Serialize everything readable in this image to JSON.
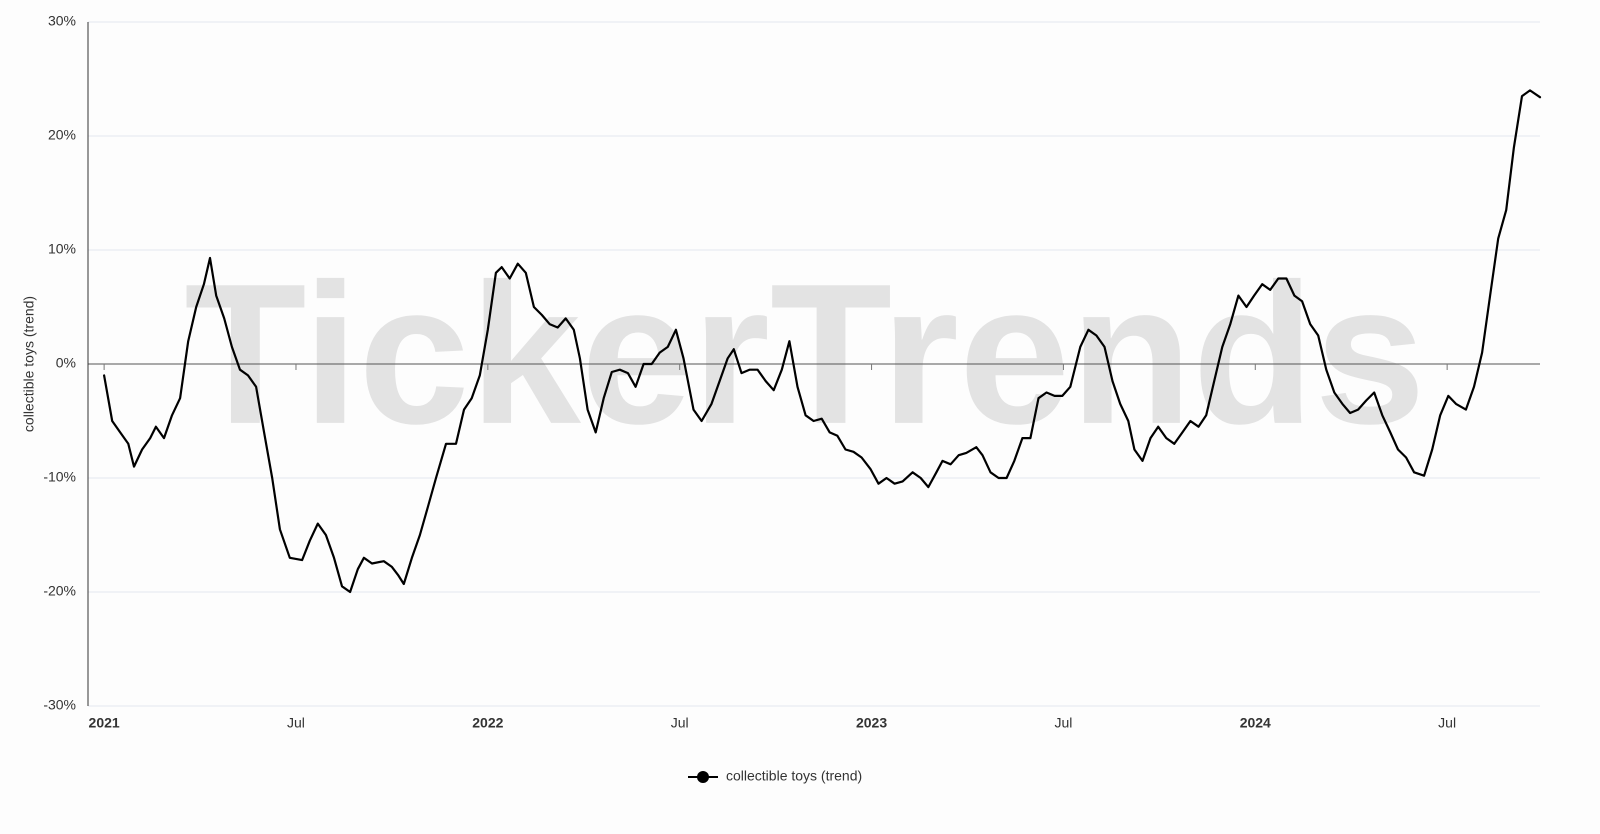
{
  "chart_data": {
    "type": "line",
    "watermark": "TickerTrends",
    "ylabel": "collectible toys  (trend)",
    "xlim": [
      2020.958,
      2024.742
    ],
    "xticks": [
      {
        "value": 2021,
        "label": "2021"
      },
      {
        "value": 2021.5,
        "label": "Jul"
      },
      {
        "value": 2022,
        "label": "2022"
      },
      {
        "value": 2022.5,
        "label": "Jul"
      },
      {
        "value": 2023,
        "label": "2023"
      },
      {
        "value": 2023.5,
        "label": "Jul"
      },
      {
        "value": 2024,
        "label": "2024"
      },
      {
        "value": 2024.5,
        "label": "Jul"
      }
    ],
    "ylim": [
      -30,
      30
    ],
    "yticks": [
      {
        "value": -30,
        "label": "-30%"
      },
      {
        "value": -20,
        "label": "-20%"
      },
      {
        "value": -10,
        "label": "-10%"
      },
      {
        "value": 0,
        "label": "0%"
      },
      {
        "value": 10,
        "label": "10%"
      },
      {
        "value": 20,
        "label": "20%"
      },
      {
        "value": 30,
        "label": "30%"
      }
    ],
    "grid": true,
    "legend": "bottom",
    "x": [
      2021.0,
      2021.021,
      2021.042,
      2021.063,
      2021.078,
      2021.099,
      2021.12,
      2021.135,
      2021.156,
      2021.177,
      2021.198,
      2021.219,
      2021.24,
      2021.26,
      2021.276,
      2021.292,
      2021.313,
      2021.333,
      2021.354,
      2021.375,
      2021.396,
      2021.417,
      2021.438,
      2021.458,
      2021.484,
      2021.516,
      2021.536,
      2021.557,
      2021.578,
      2021.599,
      2021.62,
      2021.641,
      2021.661,
      2021.677,
      2021.698,
      2021.729,
      2021.75,
      2021.766,
      2021.781,
      2021.802,
      2021.823,
      2021.844,
      2021.865,
      2021.891,
      2021.917,
      2021.938,
      2021.958,
      2021.979,
      2022.0,
      2022.021,
      2022.036,
      2022.057,
      2022.078,
      2022.099,
      2022.12,
      2022.141,
      2022.161,
      2022.182,
      2022.203,
      2022.224,
      2022.24,
      2022.26,
      2022.281,
      2022.302,
      2022.323,
      2022.344,
      2022.365,
      2022.385,
      2022.406,
      2022.427,
      2022.448,
      2022.469,
      2022.49,
      2022.51,
      2022.536,
      2022.557,
      2022.583,
      2022.604,
      2022.625,
      2022.641,
      2022.661,
      2022.682,
      2022.703,
      2022.724,
      2022.745,
      2022.766,
      2022.786,
      2022.807,
      2022.828,
      2022.849,
      2022.87,
      2022.891,
      2022.911,
      2022.932,
      2022.953,
      2022.974,
      2022.997,
      2023.018,
      2023.039,
      2023.06,
      2023.081,
      2023.107,
      2023.128,
      2023.148,
      2023.169,
      2023.185,
      2023.206,
      2023.227,
      2023.247,
      2023.273,
      2023.289,
      2023.31,
      2023.331,
      2023.352,
      2023.372,
      2023.393,
      2023.414,
      2023.435,
      2023.456,
      2023.477,
      2023.497,
      2023.518,
      2023.544,
      2023.565,
      2023.586,
      2023.607,
      2023.628,
      2023.648,
      2023.669,
      2023.685,
      2023.706,
      2023.727,
      2023.747,
      2023.768,
      2023.789,
      2023.81,
      2023.831,
      2023.852,
      2023.872,
      2023.893,
      2023.914,
      2023.935,
      2023.956,
      2023.977,
      2023.997,
      2024.018,
      2024.039,
      2024.06,
      2024.081,
      2024.102,
      2024.122,
      2024.143,
      2024.164,
      2024.185,
      2024.206,
      2024.227,
      2024.247,
      2024.268,
      2024.289,
      2024.31,
      2024.331,
      2024.352,
      2024.372,
      2024.393,
      2024.414,
      2024.44,
      2024.461,
      2024.482,
      2024.503,
      2024.523,
      2024.549,
      2024.57,
      2024.591,
      2024.612,
      2024.633,
      2024.654,
      2024.674,
      2024.695,
      2024.716,
      2024.742
    ],
    "series": [
      {
        "name": "collectible toys  (trend)",
        "color": "#000000",
        "values": [
          -1,
          -5,
          -6,
          -7,
          -9,
          -7.5,
          -6.5,
          -5.5,
          -6.5,
          -4.5,
          -3,
          2,
          5,
          7,
          9.3,
          6,
          4,
          1.5,
          -0.5,
          -1,
          -2,
          -6,
          -10,
          -14.5,
          -17,
          -17.2,
          -15.5,
          -14,
          -15,
          -17,
          -19.5,
          -20,
          -18,
          -17,
          -17.5,
          -17.3,
          -17.8,
          -18.5,
          -19.3,
          -17,
          -15,
          -12.5,
          -10,
          -7,
          -7,
          -4,
          -3,
          -1,
          3,
          8,
          8.5,
          7.5,
          8.8,
          8,
          5,
          4.3,
          3.5,
          3.2,
          4,
          3,
          0.5,
          -4,
          -6,
          -3,
          -0.7,
          -0.5,
          -0.8,
          -2,
          0,
          0,
          1,
          1.5,
          3,
          0.5,
          -4,
          -5,
          -3.5,
          -1.5,
          0.5,
          1.3,
          -0.8,
          -0.5,
          -0.5,
          -1.5,
          -2.3,
          -0.5,
          2,
          -2,
          -4.5,
          -5,
          -4.8,
          -6,
          -6.3,
          -7.5,
          -7.7,
          -8.2,
          -9.2,
          -10.5,
          -10,
          -10.5,
          -10.3,
          -9.5,
          -10,
          -10.8,
          -9.5,
          -8.5,
          -8.8,
          -8,
          -7.8,
          -7.3,
          -8,
          -9.5,
          -10,
          -10,
          -8.5,
          -6.5,
          -6.5,
          -3,
          -2.5,
          -2.8,
          -2.8,
          -2,
          1.5,
          3,
          2.5,
          1.5,
          -1.5,
          -3.5,
          -5,
          -7.5,
          -8.5,
          -6.5,
          -5.5,
          -6.5,
          -7,
          -6,
          -5,
          -5.5,
          -4.5,
          -1.5,
          1.5,
          3.5,
          6,
          5,
          6,
          7,
          6.5,
          7.5,
          7.5,
          6,
          5.5,
          3.5,
          2.5,
          -0.5,
          -2.5,
          -3.5,
          -4.3,
          -4,
          -3.2,
          -2.5,
          -4.5,
          -6,
          -7.5,
          -8.2,
          -9.5,
          -9.8,
          -7.5,
          -4.5,
          -2.8,
          -3.5,
          -4,
          -2,
          1,
          6,
          11,
          13.5,
          19,
          23.5,
          24,
          23.4
        ]
      }
    ]
  }
}
